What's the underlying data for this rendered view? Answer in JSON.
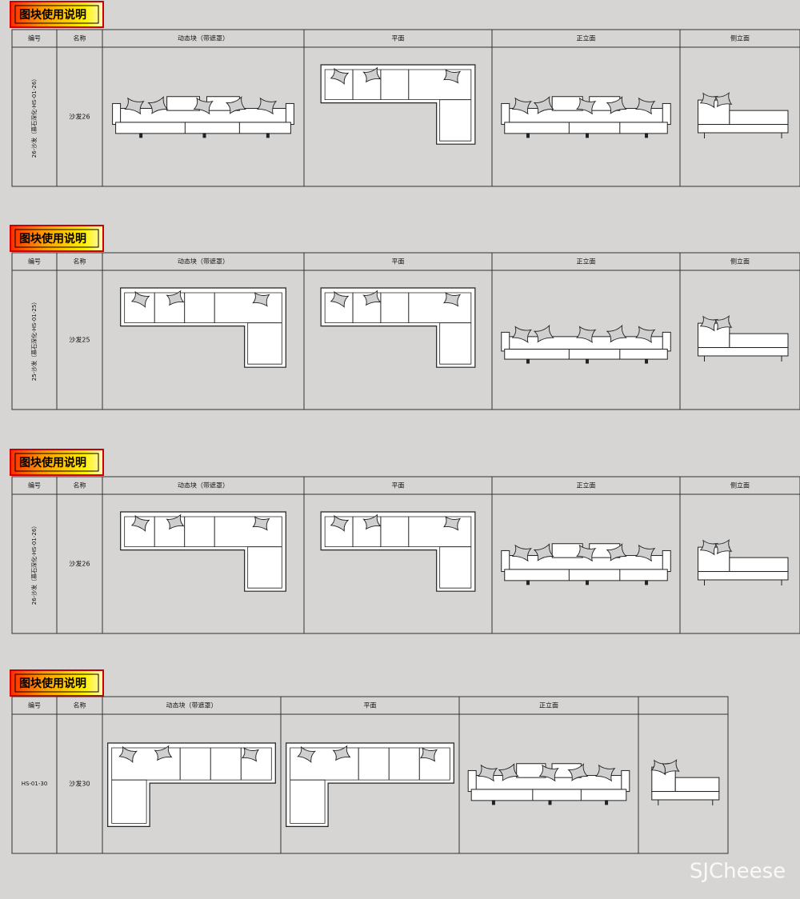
{
  "panels": [
    {
      "title": "图块使用说明",
      "headers": [
        "编号",
        "名称",
        "动态块（带遮罩）",
        "平面",
        "正立面",
        "侧立面"
      ],
      "code": "26-沙发（慕石深化-HS-01-26）",
      "name": "沙发26"
    },
    {
      "title": "图块使用说明",
      "headers": [
        "编号",
        "名称",
        "动态块（带遮罩）",
        "平面",
        "正立面",
        "侧立面"
      ],
      "code": "25-沙发（慕石深化-HS-01-25）",
      "name": "沙发25"
    },
    {
      "title": "图块使用说明",
      "headers": [
        "编号",
        "名称",
        "动态块（带遮罩）",
        "平面",
        "正立面",
        "侧立面"
      ],
      "code": "26-沙发（慕石深化-HS-01-26）",
      "name": "沙发26"
    },
    {
      "title": "图块使用说明",
      "headers": [
        "编号",
        "名称",
        "动态块（带遮罩）",
        "平面",
        "正立面"
      ],
      "code": "HS-01-30",
      "name": "沙发30"
    }
  ],
  "watermark": "SJCheese"
}
